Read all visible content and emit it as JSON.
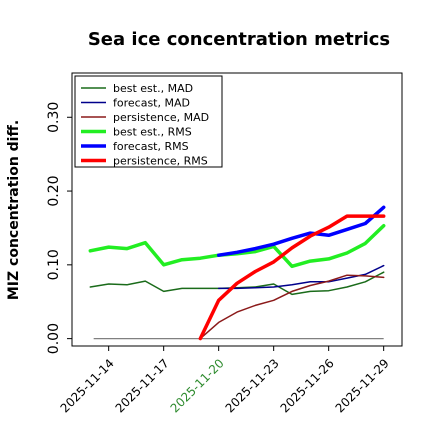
{
  "chart_data": {
    "type": "line",
    "title": "Sea ice concentration metrics",
    "xlabel": "",
    "ylabel": "MIZ concentration diff.",
    "ylim": [
      -0.01,
      0.36
    ],
    "xlim": [
      "2025-11-12",
      "2025-11-30"
    ],
    "y_ticks": [
      "0.00",
      "0.10",
      "0.20",
      "0.30"
    ],
    "y_tick_values": [
      0.0,
      0.1,
      0.2,
      0.3
    ],
    "x_ticks": [
      "2025-11-14",
      "2025-11-17",
      "2025-11-20",
      "2025-11-23",
      "2025-11-26",
      "2025-11-29"
    ],
    "x_tick_colors": [
      "#000000",
      "#000000",
      "#2e8b2e",
      "#000000",
      "#000000",
      "#000000"
    ],
    "grid": false,
    "legend_position": "upper-left",
    "zero_line": {
      "y": 0.0,
      "color": "#808080"
    },
    "series": [
      {
        "name": "best est., MAD",
        "color": "#1a6b1a",
        "width": 1.5,
        "x": [
          "2025-11-13",
          "2025-11-14",
          "2025-11-15",
          "2025-11-16",
          "2025-11-17",
          "2025-11-18",
          "2025-11-19",
          "2025-11-20",
          "2025-11-21",
          "2025-11-22",
          "2025-11-23",
          "2025-11-24",
          "2025-11-25",
          "2025-11-26",
          "2025-11-27",
          "2025-11-28",
          "2025-11-29"
        ],
        "values": [
          0.07,
          0.074,
          0.073,
          0.078,
          0.064,
          0.068,
          0.068,
          0.068,
          0.069,
          0.07,
          0.074,
          0.06,
          0.064,
          0.065,
          0.07,
          0.077,
          0.09
        ]
      },
      {
        "name": "forecast,  MAD",
        "color": "#00008b",
        "width": 1.5,
        "x": [
          "2025-11-20",
          "2025-11-21",
          "2025-11-22",
          "2025-11-23",
          "2025-11-24",
          "2025-11-25",
          "2025-11-26",
          "2025-11-27",
          "2025-11-28",
          "2025-11-29"
        ],
        "values": [
          0.068,
          0.068,
          0.069,
          0.07,
          0.073,
          0.077,
          0.077,
          0.082,
          0.087,
          0.099
        ]
      },
      {
        "name": "persistence, MAD",
        "color": "#8b1a1a",
        "width": 1.5,
        "x": [
          "2025-11-19",
          "2025-11-20",
          "2025-11-21",
          "2025-11-22",
          "2025-11-23",
          "2025-11-24",
          "2025-11-25",
          "2025-11-26",
          "2025-11-27",
          "2025-11-28",
          "2025-11-29"
        ],
        "values": [
          0.0,
          0.022,
          0.036,
          0.045,
          0.052,
          0.064,
          0.072,
          0.078,
          0.086,
          0.085,
          0.083
        ]
      },
      {
        "name": "best est., RMS",
        "color": "#22ee22",
        "width": 3.5,
        "x": [
          "2025-11-13",
          "2025-11-14",
          "2025-11-15",
          "2025-11-16",
          "2025-11-17",
          "2025-11-18",
          "2025-11-19",
          "2025-11-20",
          "2025-11-21",
          "2025-11-22",
          "2025-11-23",
          "2025-11-24",
          "2025-11-25",
          "2025-11-26",
          "2025-11-27",
          "2025-11-28",
          "2025-11-29"
        ],
        "values": [
          0.119,
          0.124,
          0.122,
          0.13,
          0.1,
          0.107,
          0.109,
          0.113,
          0.115,
          0.118,
          0.125,
          0.098,
          0.105,
          0.108,
          0.116,
          0.129,
          0.153
        ]
      },
      {
        "name": "forecast,  RMS",
        "color": "#0000ff",
        "width": 3.5,
        "x": [
          "2025-11-20",
          "2025-11-21",
          "2025-11-22",
          "2025-11-23",
          "2025-11-24",
          "2025-11-25",
          "2025-11-26",
          "2025-11-27",
          "2025-11-28",
          "2025-11-29"
        ],
        "values": [
          0.113,
          0.117,
          0.122,
          0.128,
          0.136,
          0.143,
          0.14,
          0.148,
          0.156,
          0.178
        ]
      },
      {
        "name": "persistence, RMS",
        "color": "#ff0000",
        "width": 3.5,
        "x": [
          "2025-11-19",
          "2025-11-20",
          "2025-11-21",
          "2025-11-22",
          "2025-11-23",
          "2025-11-24",
          "2025-11-25",
          "2025-11-26",
          "2025-11-27",
          "2025-11-28",
          "2025-11-29"
        ],
        "values": [
          0.0,
          0.052,
          0.075,
          0.091,
          0.104,
          0.123,
          0.139,
          0.151,
          0.166,
          0.166,
          0.166
        ]
      }
    ]
  }
}
